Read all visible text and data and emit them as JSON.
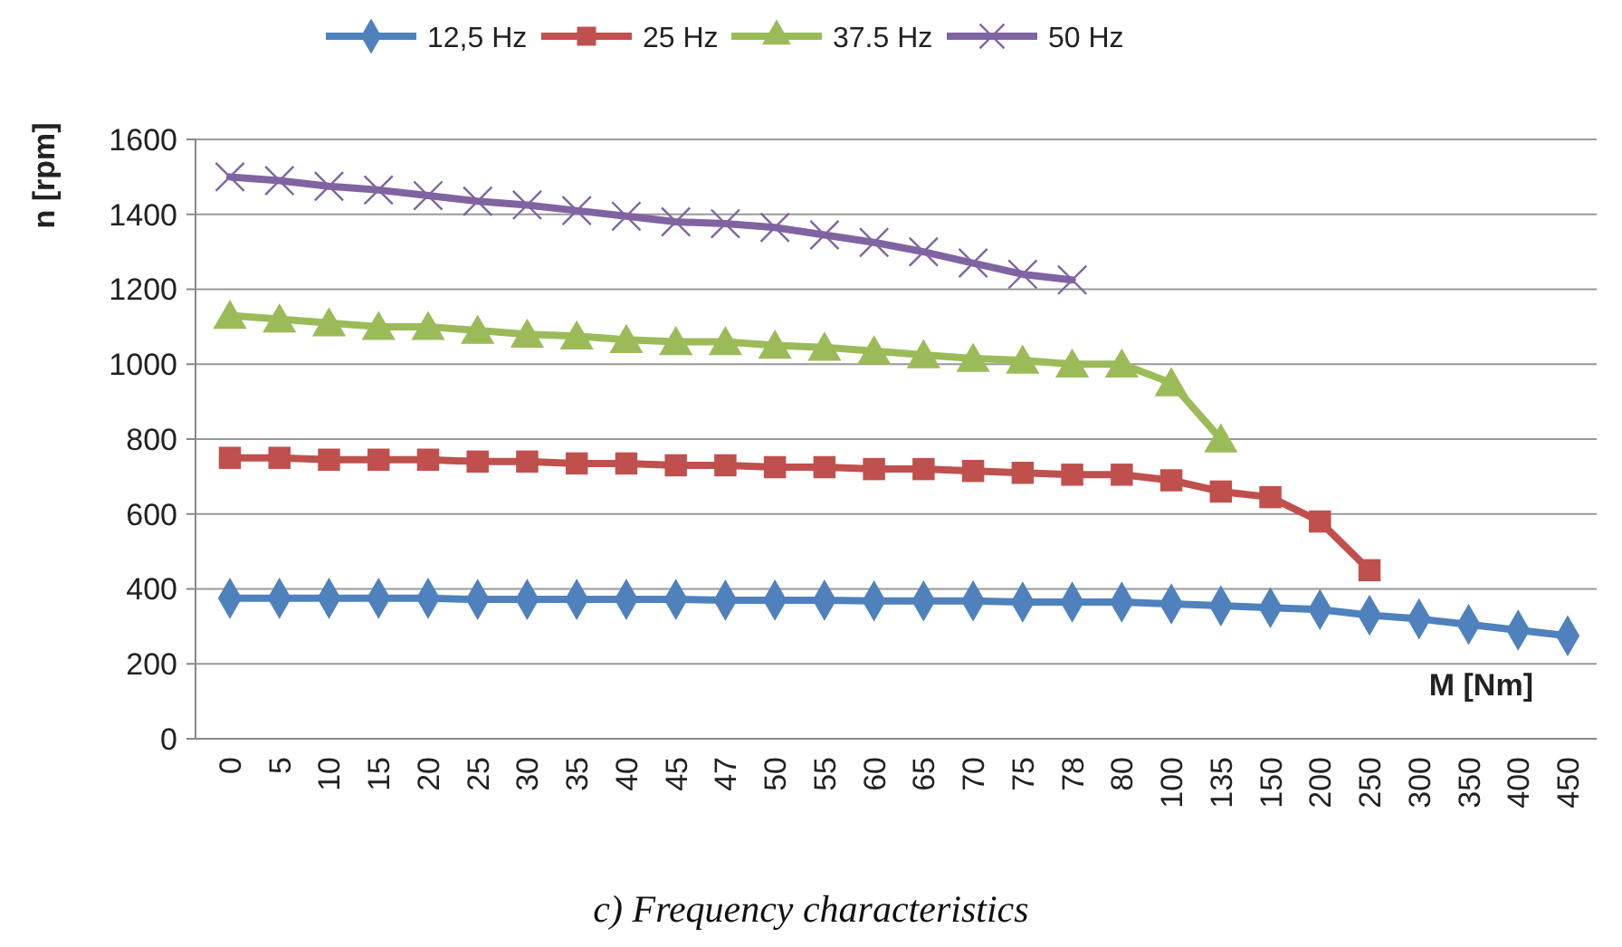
{
  "chart_data": {
    "type": "line",
    "title": "c) Frequency characteristics",
    "xlabel": "M [Nm]",
    "ylabel": "n [rpm]",
    "categories": [
      "0",
      "5",
      "10",
      "15",
      "20",
      "25",
      "30",
      "35",
      "40",
      "45",
      "47",
      "50",
      "55",
      "60",
      "65",
      "70",
      "75",
      "78",
      "80",
      "100",
      "135",
      "150",
      "200",
      "250",
      "300",
      "350",
      "400",
      "450"
    ],
    "series": [
      {
        "name": "12,5 Hz",
        "color": "#4f81bd",
        "marker": "diamond",
        "values": [
          375,
          375,
          375,
          375,
          375,
          372,
          372,
          372,
          372,
          372,
          370,
          370,
          370,
          368,
          368,
          368,
          365,
          365,
          365,
          360,
          355,
          350,
          345,
          330,
          320,
          305,
          290,
          275
        ]
      },
      {
        "name": "25 Hz",
        "color": "#c0504d",
        "marker": "square",
        "values": [
          750,
          750,
          745,
          745,
          745,
          740,
          740,
          735,
          735,
          730,
          730,
          725,
          725,
          720,
          720,
          715,
          710,
          705,
          705,
          690,
          660,
          645,
          580,
          450,
          null,
          null,
          null,
          null
        ]
      },
      {
        "name": "37.5 Hz",
        "color": "#9bbb59",
        "marker": "triangle",
        "values": [
          1130,
          1120,
          1110,
          1100,
          1100,
          1090,
          1080,
          1075,
          1065,
          1060,
          1060,
          1050,
          1045,
          1035,
          1025,
          1015,
          1010,
          1000,
          1000,
          950,
          800,
          null,
          null,
          null,
          null,
          null,
          null,
          null
        ]
      },
      {
        "name": "50 Hz",
        "color": "#8064a2",
        "marker": "cross",
        "values": [
          1500,
          1490,
          1475,
          1465,
          1450,
          1435,
          1425,
          1410,
          1395,
          1380,
          1375,
          1365,
          1345,
          1325,
          1300,
          1270,
          1240,
          1225,
          null,
          null,
          null,
          null,
          null,
          null,
          null,
          null,
          null,
          null
        ]
      }
    ],
    "ylim": [
      0,
      1600
    ],
    "yticks": [
      0,
      200,
      400,
      600,
      800,
      1000,
      1200,
      1400,
      1600
    ],
    "grid": "y",
    "legend": "top"
  }
}
